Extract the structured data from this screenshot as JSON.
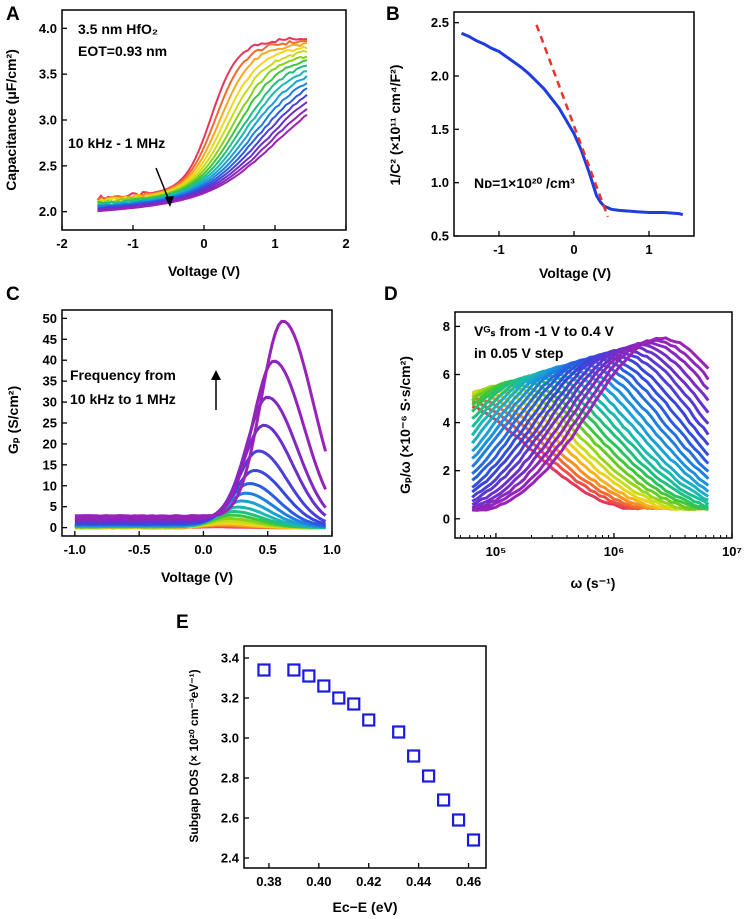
{
  "chart_data": [
    {
      "id": "A",
      "panel_label": "A",
      "type": "line",
      "xlabel": "Voltage (V)",
      "ylabel": "Capacitance (μF/cm²)",
      "xlim": [
        -2,
        2
      ],
      "ylim": [
        1.8,
        4.2
      ],
      "xticks": [
        "-2",
        "-1",
        "0",
        "1",
        "2"
      ],
      "xtick_values": [
        -2,
        -1,
        0,
        1,
        2
      ],
      "yticks": [
        "2.0",
        "2.5",
        "3.0",
        "3.5",
        "4.0"
      ],
      "ytick_values": [
        2.0,
        2.5,
        3.0,
        3.5,
        4.0
      ],
      "annotations": {
        "material": "3.5 nm HfO₂",
        "eot": "EOT=0.93 nm",
        "freq_range": "10 kHz - 1 MHz"
      },
      "series_model": {
        "count": 16,
        "x_range": [
          -1.5,
          1.45
        ],
        "low_freq_start": 2.15,
        "high_freq_start": 2.0,
        "low_freq_plateau": 3.75,
        "high_freq_end": 3.25,
        "transition_center_low": 0.1,
        "transition_center_high": 1.0,
        "colors": [
          "#e8355a",
          "#f06a2c",
          "#f7a820",
          "#f2d51c",
          "#c9dc18",
          "#86d11c",
          "#3fc63a",
          "#1fc07d",
          "#1ab8b0",
          "#1aa0d4",
          "#1d7fe0",
          "#2a5de0",
          "#4a3fd8",
          "#6a30cc",
          "#8628c0",
          "#9a22b8"
        ]
      }
    },
    {
      "id": "B",
      "panel_label": "B",
      "type": "line",
      "xlabel": "Voltage (V)",
      "ylabel": "1/C² (×10¹¹ cm⁴/F²)",
      "xlim": [
        -1.6,
        1.6
      ],
      "ylim": [
        0.5,
        2.6
      ],
      "xticks": [
        "-1",
        "0",
        "1"
      ],
      "xtick_values": [
        -1,
        0,
        1
      ],
      "yticks": [
        "0.5",
        "1.0",
        "1.5",
        "2.0",
        "2.5"
      ],
      "ytick_values": [
        0.5,
        1.0,
        1.5,
        2.0,
        2.5
      ],
      "annotation": "Nᴅ=1×10²⁰ /cm³",
      "series": [
        {
          "name": "1/C²",
          "color": "#1f3ce0",
          "x": [
            -1.5,
            -1.4,
            -1.3,
            -1.2,
            -1.1,
            -1.0,
            -0.9,
            -0.8,
            -0.7,
            -0.6,
            -0.5,
            -0.4,
            -0.3,
            -0.2,
            -0.1,
            0.0,
            0.1,
            0.2,
            0.3,
            0.35,
            0.4,
            0.5,
            0.6,
            0.8,
            1.0,
            1.2,
            1.4,
            1.45
          ],
          "y": [
            2.4,
            2.37,
            2.33,
            2.3,
            2.26,
            2.23,
            2.18,
            2.13,
            2.08,
            2.02,
            1.95,
            1.88,
            1.79,
            1.7,
            1.58,
            1.46,
            1.3,
            1.1,
            0.88,
            0.82,
            0.78,
            0.75,
            0.74,
            0.73,
            0.72,
            0.72,
            0.71,
            0.7
          ]
        }
      ],
      "fit_line": {
        "name": "linear fit",
        "color": "#e8332a",
        "x": [
          -0.5,
          0.45
        ],
        "y": [
          2.48,
          0.68
        ]
      }
    },
    {
      "id": "C",
      "panel_label": "C",
      "type": "line",
      "xlabel": "Voltage (V)",
      "ylabel": "Gₚ (S/cm²)",
      "xlim": [
        -1.1,
        1.0
      ],
      "ylim": [
        -2,
        52
      ],
      "xticks": [
        "-1.0",
        "-0.5",
        "0.0",
        "0.5",
        "1.0"
      ],
      "xtick_values": [
        -1.0,
        -0.5,
        0.0,
        0.5,
        1.0
      ],
      "yticks": [
        "0",
        "5",
        "10",
        "15",
        "20",
        "25",
        "30",
        "35",
        "40",
        "45",
        "50"
      ],
      "ytick_values": [
        0,
        5,
        10,
        15,
        20,
        25,
        30,
        35,
        40,
        45,
        50
      ],
      "annotation_lines": [
        "Frequency from",
        "10 kHz to 1 MHz"
      ],
      "series_model": {
        "x_range": [
          -1.0,
          0.95
        ],
        "peak_values": [
          0.2,
          0.4,
          0.7,
          1.0,
          1.5,
          2.0,
          2.8,
          3.6,
          4.6,
          6.0,
          7.8,
          10.0,
          13.0,
          17.5,
          23.5,
          30.0,
          38.5,
          48.0
        ],
        "peak_positions": [
          0.1,
          0.12,
          0.14,
          0.16,
          0.18,
          0.2,
          0.22,
          0.24,
          0.27,
          0.3,
          0.33,
          0.36,
          0.4,
          0.43,
          0.47,
          0.5,
          0.55,
          0.62
        ],
        "baseline": [
          0.0,
          0.0,
          0.0,
          0.1,
          0.1,
          0.2,
          0.2,
          0.3,
          0.4,
          0.5,
          0.6,
          0.8,
          1.0,
          1.3,
          1.6,
          2.0,
          2.4,
          2.8
        ],
        "colors": [
          "#e8355a",
          "#f06a2c",
          "#f7a820",
          "#f2d51c",
          "#c9dc18",
          "#86d11c",
          "#3fc63a",
          "#1fc07d",
          "#1ab8b0",
          "#1aa0d4",
          "#1d7fe0",
          "#2a5de0",
          "#3848dc",
          "#4a3fd8",
          "#6a30cc",
          "#8628c0",
          "#9224bc",
          "#9a22b8"
        ]
      }
    },
    {
      "id": "D",
      "panel_label": "D",
      "type": "line",
      "xscale": "log",
      "xlabel": "ω (s⁻¹)",
      "ylabel": "Gₚ/ω (×10⁻⁶ S·s/cm²)",
      "xlim": [
        45000,
        10000000
      ],
      "ylim": [
        -0.8,
        8.6
      ],
      "xticks": [
        "10⁵",
        "10⁶",
        "10⁷"
      ],
      "xtick_values": [
        100000,
        1000000,
        10000000
      ],
      "yticks": [
        "0",
        "2",
        "4",
        "6",
        "8"
      ],
      "ytick_values": [
        0,
        2,
        4,
        6,
        8
      ],
      "annotation_lines": [
        "Vᴳₛ from -1 V to 0.4 V",
        "in 0.05 V step"
      ],
      "series_model": {
        "count": 29,
        "omega_range": [
          63000,
          6300000
        ],
        "peak_omega_first": 40000,
        "peak_omega_last": 2500000,
        "peak_height_first": 4.9,
        "peak_height_last": 7.5,
        "colors": [
          "#e8355a",
          "#ee4f45",
          "#f36a30",
          "#f7901f",
          "#f5b21a",
          "#ecd21b",
          "#c8dd18",
          "#98d41a",
          "#66cb24",
          "#3fc63a",
          "#2ac45a",
          "#1fc07d",
          "#1cbc98",
          "#1ab8b0",
          "#1aaec4",
          "#1aa0d4",
          "#1c90dc",
          "#1d7fe0",
          "#246ee0",
          "#2a5de0",
          "#324fde",
          "#3a44da",
          "#4a3fd8",
          "#5a38d2",
          "#6a30cc",
          "#782cc6",
          "#8628c0",
          "#9024bc",
          "#9a22b8"
        ]
      }
    },
    {
      "id": "E",
      "panel_label": "E",
      "type": "scatter",
      "xlabel": "Eᴄ−E (eV)",
      "ylabel": "Subgap DOS (× 10²⁰ cm⁻³eV⁻¹)",
      "xlim": [
        0.37,
        0.467
      ],
      "ylim": [
        2.35,
        3.46
      ],
      "xticks": [
        "0.38",
        "0.40",
        "0.42",
        "0.44",
        "0.46"
      ],
      "xtick_values": [
        0.38,
        0.4,
        0.42,
        0.44,
        0.46
      ],
      "yticks": [
        "2.4",
        "2.6",
        "2.8",
        "3.0",
        "3.2",
        "3.4"
      ],
      "ytick_values": [
        2.4,
        2.6,
        2.8,
        3.0,
        3.2,
        3.4
      ],
      "marker_color": "#1a1ae0",
      "x": [
        0.378,
        0.39,
        0.396,
        0.402,
        0.408,
        0.414,
        0.42,
        0.432,
        0.438,
        0.444,
        0.45,
        0.456,
        0.462
      ],
      "y": [
        3.34,
        3.34,
        3.31,
        3.26,
        3.2,
        3.17,
        3.09,
        3.03,
        2.91,
        2.81,
        2.69,
        2.59,
        2.49
      ]
    }
  ]
}
